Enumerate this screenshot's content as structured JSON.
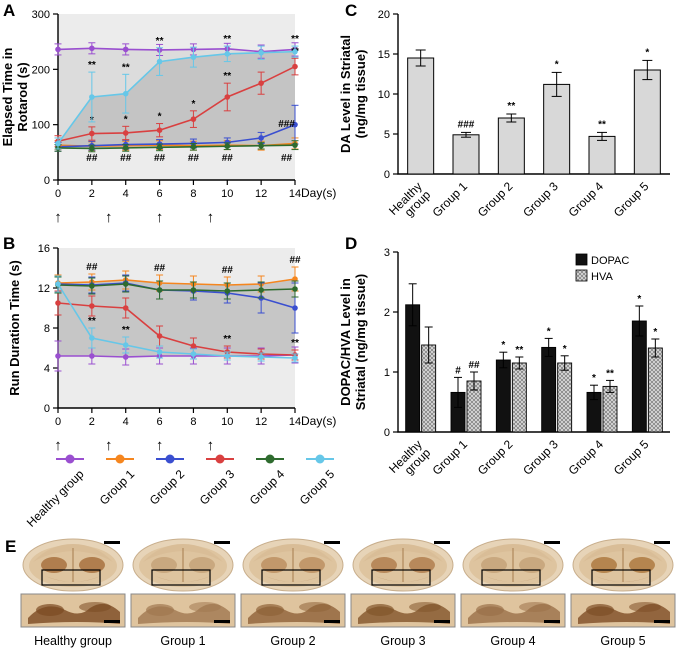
{
  "figure": {
    "panels": {
      "a": "A",
      "b": "B",
      "c": "C",
      "d": "D",
      "e": "E"
    }
  },
  "legend": {
    "items": [
      {
        "label": "Healthy group",
        "color": "#9A4FD0"
      },
      {
        "label": "Group 1",
        "color": "#F5861F"
      },
      {
        "label": "Group 2",
        "color": "#3A4FD0"
      },
      {
        "label": "Group 3",
        "color": "#D94040"
      },
      {
        "label": "Group 4",
        "color": "#2E6B2E"
      },
      {
        "label": "Group 5",
        "color": "#66C7E8"
      }
    ]
  },
  "panelE": {
    "labels": [
      "Healthy group",
      "Group 1",
      "Group 2",
      "Group 3",
      "Group 4",
      "Group 5"
    ]
  },
  "chart_data": [
    {
      "panel": "A",
      "type": "line",
      "ylabel": "Elapsed Time in\nRotarod (s)",
      "xlabel": "Day(s)",
      "x": [
        0,
        2,
        4,
        6,
        8,
        10,
        12,
        14
      ],
      "xticks": [
        0,
        2,
        4,
        6,
        8,
        10,
        12,
        14
      ],
      "xlim": [
        0,
        14
      ],
      "ylim": [
        0,
        300
      ],
      "yticks": [
        0,
        100,
        200,
        300
      ],
      "arrows_x": [
        0,
        3,
        6,
        9
      ],
      "bg": "#ECECEC",
      "bands": [
        {
          "upper": 0,
          "lower": 5,
          "color": "#DCDCDC"
        },
        {
          "upper": 5,
          "lower": 4,
          "color": "#C4C4C4"
        }
      ],
      "series": [
        {
          "name": "Healthy group",
          "color": "#9A4FD0",
          "values": [
            236,
            238,
            236,
            235,
            236,
            237,
            232,
            236
          ],
          "err": [
            10,
            10,
            10,
            10,
            10,
            10,
            12,
            12
          ]
        },
        {
          "name": "Group 1",
          "color": "#F5861F",
          "values": [
            63,
            61,
            62,
            63,
            62,
            63,
            62,
            66
          ],
          "err": [
            8,
            8,
            8,
            8,
            8,
            8,
            8,
            10
          ]
        },
        {
          "name": "Group 2",
          "color": "#3A4FD0",
          "values": [
            60,
            62,
            64,
            65,
            66,
            68,
            76,
            100
          ],
          "err": [
            8,
            8,
            8,
            8,
            8,
            8,
            10,
            35
          ]
        },
        {
          "name": "Group 3",
          "color": "#D94040",
          "values": [
            70,
            84,
            85,
            90,
            110,
            150,
            175,
            205
          ],
          "err": [
            10,
            12,
            12,
            12,
            15,
            25,
            20,
            15
          ],
          "ann": [
            "",
            "*",
            "*",
            "*",
            "*",
            "**",
            "",
            "**"
          ]
        },
        {
          "name": "Group 4",
          "color": "#2E6B2E",
          "values": [
            58,
            57,
            58,
            59,
            60,
            61,
            62,
            63
          ],
          "err": [
            6,
            6,
            6,
            6,
            6,
            6,
            6,
            8
          ]
        },
        {
          "name": "Group 5",
          "color": "#66C7E8",
          "values": [
            66,
            150,
            156,
            214,
            222,
            228,
            230,
            232
          ],
          "err": [
            10,
            45,
            35,
            25,
            18,
            14,
            12,
            10
          ],
          "ann": [
            "",
            "**",
            "**",
            "**",
            "",
            "**",
            "",
            "**"
          ]
        }
      ],
      "annotations": [
        {
          "x": 2,
          "y": 34,
          "text": "##"
        },
        {
          "x": 4,
          "y": 34,
          "text": "##"
        },
        {
          "x": 6,
          "y": 34,
          "text": "##"
        },
        {
          "x": 8,
          "y": 34,
          "text": "##"
        },
        {
          "x": 10,
          "y": 34,
          "text": "##"
        },
        {
          "x": 13.5,
          "y": 96,
          "text": "###"
        },
        {
          "x": 13.5,
          "y": 34,
          "text": "##"
        }
      ]
    },
    {
      "panel": "B",
      "type": "line",
      "ylabel": "Run Duration Time (s)",
      "xlabel": "Day(s)",
      "x": [
        0,
        2,
        4,
        6,
        8,
        10,
        12,
        14
      ],
      "xticks": [
        0,
        2,
        4,
        6,
        8,
        10,
        12,
        14
      ],
      "xlim": [
        0,
        14
      ],
      "ylim": [
        0,
        16
      ],
      "yticks": [
        0,
        4,
        8,
        12,
        16
      ],
      "arrows_x": [
        0,
        3,
        6,
        9
      ],
      "bg": "#ECECEC",
      "bands": [
        {
          "upper": 1,
          "lower": 0,
          "color": "#C6C6C6"
        }
      ],
      "series": [
        {
          "name": "Healthy group",
          "color": "#9A4FD0",
          "values": [
            5.2,
            5.2,
            5.1,
            5.2,
            5.2,
            5.2,
            5.2,
            5.3
          ],
          "err": [
            1.5,
            0.8,
            0.8,
            0.8,
            0.8,
            0.8,
            0.8,
            0.8
          ]
        },
        {
          "name": "Group 1",
          "color": "#F5861F",
          "values": [
            12.5,
            12.6,
            12.8,
            12.5,
            12.4,
            12.3,
            12.4,
            12.9
          ],
          "err": [
            0.8,
            0.8,
            0.9,
            0.8,
            0.8,
            0.8,
            0.8,
            1.2
          ],
          "ann": [
            "",
            "##",
            "",
            "##",
            "",
            "##",
            "",
            "##"
          ]
        },
        {
          "name": "Group 2",
          "color": "#3A4FD0",
          "values": [
            12.4,
            12.3,
            12.5,
            11.8,
            11.7,
            11.5,
            11.0,
            10.0
          ],
          "err": [
            0.8,
            0.8,
            0.8,
            0.9,
            0.9,
            1.0,
            1.5,
            2.5
          ]
        },
        {
          "name": "Group 3",
          "color": "#D94040",
          "values": [
            10.5,
            10.2,
            10.0,
            7.2,
            6.2,
            5.6,
            5.4,
            5.3
          ],
          "err": [
            1.2,
            1.0,
            1.0,
            1.0,
            0.8,
            0.6,
            0.5,
            0.5
          ],
          "ann": [
            "",
            "",
            "",
            "",
            "",
            "**",
            "",
            "**"
          ]
        },
        {
          "name": "Group 4",
          "color": "#2E6B2E",
          "values": [
            12.3,
            12.2,
            12.4,
            11.8,
            11.8,
            11.7,
            11.8,
            11.9
          ],
          "err": [
            0.8,
            0.8,
            0.8,
            0.9,
            0.8,
            0.8,
            0.8,
            0.8
          ]
        },
        {
          "name": "Group 5",
          "color": "#66C7E8",
          "values": [
            12.4,
            7.0,
            6.3,
            5.6,
            5.4,
            5.2,
            5.1,
            5.0
          ],
          "err": [
            0.8,
            1.0,
            0.8,
            0.6,
            0.5,
            0.4,
            0.4,
            0.4
          ],
          "ann": [
            "",
            "**",
            "**",
            "",
            "",
            "",
            "",
            ""
          ]
        }
      ],
      "annotations": []
    },
    {
      "panel": "C",
      "type": "bar",
      "ylabel": "DA Level in Striatal\n(ng/mg tissue)",
      "categories": [
        "Healthy\ngroup",
        "Group 1",
        "Group 2",
        "Group 3",
        "Group 4",
        "Group 5"
      ],
      "values": [
        14.5,
        4.9,
        7.0,
        11.2,
        4.7,
        13.0
      ],
      "errors": [
        1.0,
        0.3,
        0.5,
        1.5,
        0.5,
        1.2
      ],
      "ann": [
        "",
        "###",
        "**",
        "*",
        "**",
        "*"
      ],
      "ylim": [
        0,
        20
      ],
      "yticks": [
        0,
        5,
        10,
        15,
        20
      ],
      "bar_fill": "#D8D8D8"
    },
    {
      "panel": "D",
      "type": "grouped_bar",
      "ylabel": "DOPAC/HVA Level in\nStriatal (ng/mg tissue)",
      "categories": [
        "Healthy\ngroup",
        "Group 1",
        "Group 2",
        "Group 3",
        "Group 4",
        "Group 5"
      ],
      "ylim": [
        0,
        3
      ],
      "yticks": [
        0,
        1,
        2,
        3
      ],
      "legend_position": "top-right",
      "series": [
        {
          "name": "DOPAC",
          "fill": "#111111",
          "values": [
            2.12,
            0.66,
            1.2,
            1.41,
            0.66,
            1.85
          ],
          "errors": [
            0.35,
            0.25,
            0.13,
            0.15,
            0.12,
            0.25
          ],
          "ann": [
            "",
            "#",
            "*",
            "*",
            "*",
            "*"
          ]
        },
        {
          "name": "HVA",
          "fill": "hatch",
          "values": [
            1.45,
            0.85,
            1.15,
            1.15,
            0.76,
            1.4
          ],
          "errors": [
            0.3,
            0.15,
            0.1,
            0.12,
            0.1,
            0.15
          ],
          "ann": [
            "",
            "##",
            "**",
            "*",
            "**",
            "*"
          ]
        }
      ]
    }
  ]
}
